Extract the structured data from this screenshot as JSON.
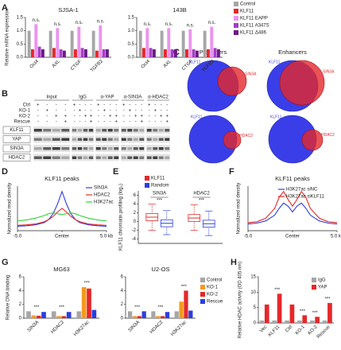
{
  "panel_labels": [
    "A",
    "B",
    "C",
    "D",
    "E",
    "F",
    "G",
    "H"
  ],
  "blot": {
    "columns": [
      "Input",
      "IgG",
      "α-YAP",
      "α-SIN3A",
      "α-HDAC2"
    ],
    "conditions": [
      {
        "name": "Ctrl",
        "signs": [
          "+",
          "-",
          "-",
          "-"
        ]
      },
      {
        "name": "KO-1",
        "signs": [
          "-",
          "+",
          "-",
          "-"
        ]
      },
      {
        "name": "KO-2",
        "signs": [
          "-",
          "-",
          "+",
          "+"
        ]
      },
      {
        "name": "Rescue",
        "signs": [
          "-",
          "-",
          "-",
          "+"
        ]
      }
    ],
    "proteins": [
      "KLF11",
      "YAP",
      "SIN3A",
      "HDAC2"
    ]
  },
  "venn": {
    "titles": [
      "Promoters",
      "Enhancers"
    ],
    "labels": [
      "KLF11",
      "SIN3A",
      "HDAC2"
    ]
  },
  "chart_data": [
    {
      "type": "bar",
      "title": "SJSA-1",
      "ylabel": "Relative mRNA expression",
      "categories": [
        "Oct4",
        "AXL",
        "CTGF",
        "TGFB2"
      ],
      "series": [
        {
          "name": "Control",
          "color": "#a6a6a6",
          "values": [
            1,
            1,
            1,
            1
          ]
        },
        {
          "name": "KLF11",
          "color": "#e5282a",
          "values": [
            0.3,
            0.35,
            0.3,
            0.25
          ]
        },
        {
          "name": "KLF11 EAPP",
          "color": "#ec93ee",
          "values": [
            1.25,
            1.1,
            1.15,
            1.2
          ]
        },
        {
          "name": "KLF11 A347S",
          "color": "#a43fc4",
          "values": [
            0.4,
            0.3,
            0.35,
            0.3
          ]
        },
        {
          "name": "KLF11 Δ486",
          "color": "#6a1b86",
          "values": [
            0.3,
            0.25,
            0.3,
            0.3
          ]
        }
      ],
      "ylim": [
        0,
        1.5
      ],
      "yticks": [
        {
          "value": 0,
          "label": "0.0"
        },
        0.5,
        {
          "value": 1,
          "label": "1.0"
        },
        1.5
      ],
      "annotations": [
        "n.s.",
        "n.s.",
        "n.s.",
        "n.s."
      ]
    },
    {
      "type": "bar",
      "title": "143B",
      "categories": [
        "Oct4",
        "AXL",
        "CTGF",
        "TGFB2"
      ],
      "series": [
        {
          "name": "Control",
          "color": "#a6a6a6",
          "values": [
            1,
            1,
            1,
            1
          ]
        },
        {
          "name": "KLF11",
          "color": "#e5282a",
          "values": [
            0.35,
            0.3,
            0.3,
            0.3
          ]
        },
        {
          "name": "KLF11 EAPP",
          "color": "#ec93ee",
          "values": [
            1.1,
            1.1,
            1.05,
            1.15
          ]
        },
        {
          "name": "KLF11 A347S",
          "color": "#a43fc4",
          "values": [
            0.35,
            0.3,
            0.3,
            0.35
          ]
        },
        {
          "name": "KLF11 Δ486",
          "color": "#6a1b86",
          "values": [
            0.3,
            0.3,
            0.25,
            0.3
          ]
        }
      ],
      "ylim": [
        0,
        1.5
      ],
      "yticks": [
        {
          "value": 0,
          "label": "0.0"
        },
        0.5,
        {
          "value": 1,
          "label": "1.0"
        },
        1.5
      ],
      "annotations": [
        "n.s.",
        "n.s.",
        "n.s.",
        "n.s."
      ],
      "legend": "right"
    },
    {
      "type": "line",
      "title": "KLF11 peaks",
      "ylabel": "Normalized read density",
      "x": [
        -5,
        -4,
        -3,
        -2,
        -1.5,
        -1,
        -0.5,
        0,
        0.5,
        1,
        1.5,
        2,
        3,
        4,
        5
      ],
      "series": [
        {
          "name": "SIN3A",
          "color": "#2b3ee0",
          "values": [
            0.1,
            0.11,
            0.13,
            0.18,
            0.25,
            0.38,
            0.6,
            0.88,
            0.6,
            0.38,
            0.25,
            0.18,
            0.13,
            0.11,
            0.1
          ]
        },
        {
          "name": "HDAC2",
          "color": "#e5282a",
          "values": [
            0.12,
            0.13,
            0.15,
            0.2,
            0.25,
            0.32,
            0.42,
            0.5,
            0.42,
            0.32,
            0.25,
            0.2,
            0.15,
            0.13,
            0.12
          ]
        },
        {
          "name": "H3K27ac",
          "color": "#33d13a",
          "values": [
            0.22,
            0.24,
            0.28,
            0.34,
            0.38,
            0.4,
            0.38,
            0.36,
            0.38,
            0.4,
            0.38,
            0.34,
            0.28,
            0.24,
            0.22
          ]
        }
      ],
      "xlim": [
        -5,
        5
      ],
      "ylim": [
        0,
        1
      ],
      "xticks": [
        {
          "value": -5,
          "label": "-5.0"
        },
        {
          "value": 0,
          "label": "Center"
        },
        {
          "value": 5,
          "label": "5.0 kb"
        }
      ],
      "legend": "upper-right"
    },
    {
      "type": "box",
      "ylabel": "KLF11 chromatin profiling (log₂)",
      "categories": [
        "SIN3A",
        "HDAC2"
      ],
      "series": [
        {
          "name": "KLF11",
          "color": "#e5282a",
          "min": [
            -2,
            -2
          ],
          "q1": [
            0.2,
            0
          ],
          "median": [
            1,
            0.8
          ],
          "q3": [
            1.8,
            1.6
          ],
          "max": [
            4,
            3.8
          ]
        },
        {
          "name": "Random",
          "color": "#2b3ee0",
          "min": [
            -3,
            -3.2
          ],
          "q1": [
            -1.2,
            -1.3
          ],
          "median": [
            -0.4,
            -0.5
          ],
          "q3": [
            0.4,
            0.3
          ],
          "max": [
            2.5,
            2.4
          ]
        }
      ],
      "ylim": [
        -5,
        7
      ],
      "yticks": [
        -4,
        -2,
        0,
        2,
        4,
        6
      ],
      "annotations": [
        "***",
        "***"
      ],
      "legend": "upper-left"
    },
    {
      "type": "line",
      "title": "KLF11 peaks",
      "ylabel": "Normalized read density",
      "x": [
        -5,
        -4,
        -3,
        -2,
        -1.5,
        -1,
        -0.5,
        0,
        0.5,
        1,
        1.5,
        2,
        3,
        4,
        5
      ],
      "series": [
        {
          "name": "H3K27ac siNC",
          "color": "#2b3ee0",
          "values": [
            0.15,
            0.17,
            0.22,
            0.35,
            0.5,
            0.62,
            0.55,
            0.42,
            0.55,
            0.62,
            0.5,
            0.35,
            0.22,
            0.17,
            0.15
          ]
        },
        {
          "name": "H3K27ac siKLF11",
          "color": "#e5282a",
          "values": [
            0.18,
            0.2,
            0.28,
            0.5,
            0.75,
            0.88,
            0.7,
            0.55,
            0.7,
            0.88,
            0.75,
            0.5,
            0.28,
            0.2,
            0.18
          ]
        }
      ],
      "xlim": [
        -5,
        5
      ],
      "ylim": [
        0,
        1
      ],
      "xticks": [
        {
          "value": -5,
          "label": "-5.0"
        },
        {
          "value": 0,
          "label": "Center"
        },
        {
          "value": 5,
          "label": "5.0 kb"
        }
      ],
      "legend": "upper-right"
    },
    {
      "type": "bar",
      "title": "MG63",
      "ylabel": "Relative DNA binding",
      "categories": [
        "SIN3A",
        "HDAC2",
        "H3K27ac"
      ],
      "series": [
        {
          "name": "Control",
          "color": "#a6a6a6",
          "values": [
            1,
            1,
            1
          ]
        },
        {
          "name": "KO-1",
          "color": "#f39a1e",
          "values": [
            0.4,
            0.3,
            4.5
          ]
        },
        {
          "name": "KO-2",
          "color": "#e5282a",
          "values": [
            0.35,
            0.3,
            4.3
          ]
        },
        {
          "name": "Rescue",
          "color": "#2b3ee0",
          "values": [
            0.9,
            0.9,
            1.2
          ]
        }
      ],
      "ylim": [
        0,
        6
      ],
      "yticks": [
        0,
        2,
        4,
        6
      ],
      "annotations": [
        "***",
        "***",
        "***"
      ]
    },
    {
      "type": "bar",
      "title": "U2-OS",
      "categories": [
        "SIN3A",
        "HDAC2",
        "H3K27ac"
      ],
      "series": [
        {
          "name": "Control",
          "color": "#a6a6a6",
          "values": [
            1,
            1,
            1
          ]
        },
        {
          "name": "KO-1",
          "color": "#f39a1e",
          "values": [
            0.3,
            0.3,
            2.4
          ]
        },
        {
          "name": "KO-2",
          "color": "#e5282a",
          "values": [
            0.3,
            0.3,
            4
          ]
        },
        {
          "name": "Rescue",
          "color": "#2b3ee0",
          "values": [
            1,
            0.9,
            1.1
          ]
        }
      ],
      "ylim": [
        0,
        6
      ],
      "yticks": [
        0,
        2,
        4,
        6
      ],
      "annotations": [
        "***",
        "***",
        "***"
      ],
      "legend": "right"
    },
    {
      "type": "bar",
      "ylabel": "Relative HDAC activity (OD 405 nm)",
      "categories": [
        "Vec",
        "KLF11",
        "Ctrl",
        "KO-1",
        "KO-2",
        "Rescue"
      ],
      "series": [
        {
          "name": "IgG",
          "color": "#a6a6a6",
          "values": [
            0.8,
            0.8,
            0.8,
            0.8,
            0.8,
            0.8
          ]
        },
        {
          "name": "YAP",
          "color": "#e5282a",
          "values": [
            6,
            9.5,
            6,
            2.5,
            2,
            6.5
          ]
        }
      ],
      "ylim": [
        0,
        15
      ],
      "yticks": [
        0,
        5,
        10,
        15
      ],
      "annotations": [
        null,
        "***",
        null,
        "***",
        "***",
        "***"
      ],
      "legend": "upper-right"
    }
  ]
}
